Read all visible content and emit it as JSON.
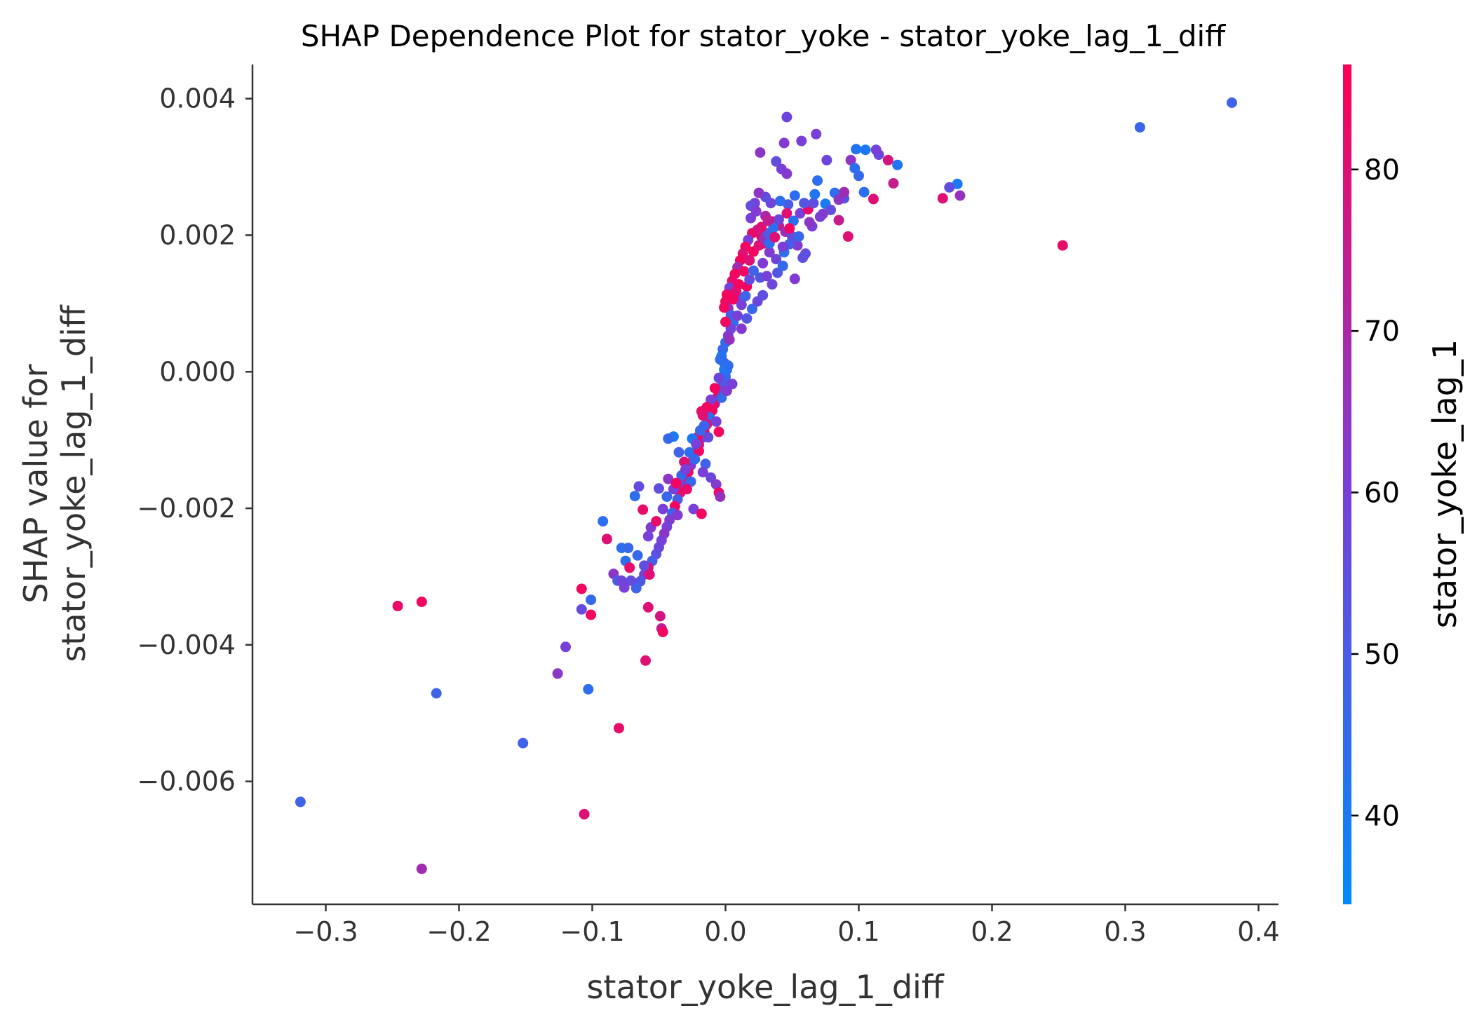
{
  "chart_data": {
    "type": "scatter",
    "title": "SHAP Dependence Plot for stator_yoke - stator_yoke_lag_1_diff",
    "xlabel": "stator_yoke_lag_1_diff",
    "ylabel_lines": [
      "SHAP value for",
      "stator_yoke_lag_1_diff"
    ],
    "xlim": [
      -0.355,
      0.415
    ],
    "ylim": [
      -0.0078,
      0.0045
    ],
    "x_ticks": [
      -0.3,
      -0.2,
      -0.1,
      0.0,
      0.1,
      0.2,
      0.3,
      0.4
    ],
    "x_tick_labels": [
      "−0.3",
      "−0.2",
      "−0.1",
      "0.0",
      "0.1",
      "0.2",
      "0.3",
      "0.4"
    ],
    "y_ticks": [
      0.004,
      0.002,
      0.0,
      -0.002,
      -0.004,
      -0.006
    ],
    "y_tick_labels": [
      "0.004",
      "0.002",
      "0.000",
      "−0.002",
      "−0.004",
      "−0.006"
    ],
    "colorbar": {
      "label": "stator_yoke_lag_1",
      "range": [
        34.5,
        86.5
      ],
      "ticks": [
        40,
        50,
        60,
        70,
        80
      ],
      "tick_labels": [
        "40",
        "50",
        "60",
        "70",
        "80"
      ],
      "colors": [
        "#008afb",
        "#ff0052"
      ]
    },
    "points": [
      [
        0.38,
        0.00394,
        48
      ],
      [
        0.311,
        0.00358,
        47
      ],
      [
        0.253,
        0.00185,
        82
      ],
      [
        0.176,
        0.00258,
        66
      ],
      [
        0.174,
        0.00275,
        40
      ],
      [
        0.168,
        0.0027,
        55
      ],
      [
        0.163,
        0.00254,
        80
      ],
      [
        0.122,
        0.0031,
        78
      ],
      [
        0.129,
        0.00303,
        42
      ],
      [
        0.126,
        0.00276,
        75
      ],
      [
        0.115,
        0.00318,
        57
      ],
      [
        0.113,
        0.00325,
        60
      ],
      [
        0.104,
        0.00263,
        44
      ],
      [
        0.098,
        0.00326,
        42
      ],
      [
        0.094,
        0.0031,
        64
      ],
      [
        0.1,
        0.00287,
        46
      ],
      [
        0.105,
        0.00325,
        40
      ],
      [
        0.111,
        0.00253,
        80
      ],
      [
        0.097,
        0.00298,
        44
      ],
      [
        0.089,
        0.00254,
        52
      ],
      [
        0.082,
        0.00262,
        44
      ],
      [
        0.075,
        0.00246,
        40
      ],
      [
        0.076,
        0.0031,
        58
      ],
      [
        0.068,
        0.00348,
        60
      ],
      [
        0.046,
        0.00373,
        58
      ],
      [
        0.044,
        0.00335,
        62
      ],
      [
        0.026,
        0.00321,
        64
      ],
      [
        0.038,
        0.00308,
        55
      ],
      [
        0.057,
        0.00338,
        60
      ],
      [
        0.042,
        0.00297,
        60
      ],
      [
        0.069,
        0.0028,
        44
      ],
      [
        0.046,
        0.0029,
        62
      ],
      [
        0.092,
        0.00198,
        80
      ],
      [
        0.085,
        0.00222,
        75
      ],
      [
        0.065,
        0.00213,
        60
      ],
      [
        0.06,
        0.00173,
        55
      ],
      [
        0.054,
        0.00185,
        62
      ],
      [
        0.052,
        0.00258,
        44
      ],
      [
        0.047,
        0.00245,
        50
      ],
      [
        0.041,
        0.0025,
        44
      ],
      [
        0.034,
        0.00247,
        58
      ],
      [
        0.03,
        0.00256,
        55
      ],
      [
        0.025,
        0.00262,
        64
      ],
      [
        0.022,
        0.00247,
        60
      ],
      [
        0.019,
        0.00243,
        56
      ],
      [
        0.03,
        0.00228,
        70
      ],
      [
        0.035,
        0.0022,
        84
      ],
      [
        0.04,
        0.00214,
        76
      ],
      [
        0.045,
        0.00205,
        66
      ],
      [
        0.05,
        0.00198,
        56
      ],
      [
        0.048,
        0.00187,
        50
      ],
      [
        0.044,
        0.00175,
        44
      ],
      [
        0.038,
        0.00165,
        58
      ],
      [
        0.033,
        0.00175,
        62
      ],
      [
        0.029,
        0.00188,
        80
      ],
      [
        0.027,
        0.00198,
        84
      ],
      [
        0.024,
        0.00208,
        74
      ],
      [
        0.02,
        0.00203,
        82
      ],
      [
        0.017,
        0.00193,
        60
      ],
      [
        0.015,
        0.00183,
        84
      ],
      [
        0.013,
        0.00173,
        80
      ],
      [
        0.011,
        0.00163,
        84
      ],
      [
        0.009,
        0.00153,
        68
      ],
      [
        0.007,
        0.00143,
        84
      ],
      [
        0.005,
        0.00133,
        82
      ],
      [
        0.003,
        0.00123,
        60
      ],
      [
        0.001,
        0.00113,
        84
      ],
      [
        0.0,
        0.00103,
        84
      ],
      [
        0.002,
        0.00093,
        66
      ],
      [
        0.004,
        0.00083,
        50
      ],
      [
        0.006,
        0.00073,
        44
      ],
      [
        0.004,
        0.00063,
        58
      ],
      [
        0.002,
        0.00053,
        62
      ],
      [
        0.0,
        0.00043,
        44
      ],
      [
        -0.002,
        0.00033,
        46
      ],
      [
        -0.003,
        0.00023,
        42
      ],
      [
        -0.001,
        0.00013,
        50
      ],
      [
        0.001,
        3e-05,
        44
      ],
      [
        0.0,
        -7e-05,
        46
      ],
      [
        -0.002,
        -0.00017,
        50
      ],
      [
        -0.004,
        -0.00027,
        58
      ],
      [
        -0.006,
        -0.00037,
        82
      ],
      [
        -0.008,
        -0.00047,
        60
      ],
      [
        -0.01,
        -0.00057,
        84
      ],
      [
        -0.012,
        -0.00067,
        44
      ],
      [
        -0.014,
        -0.00077,
        80
      ],
      [
        -0.016,
        -0.00087,
        84
      ],
      [
        -0.018,
        -0.00097,
        56
      ],
      [
        -0.02,
        -0.00107,
        80
      ],
      [
        -0.022,
        -0.00117,
        58
      ],
      [
        -0.024,
        -0.00127,
        74
      ],
      [
        -0.026,
        -0.00137,
        62
      ],
      [
        -0.028,
        -0.00147,
        84
      ],
      [
        -0.03,
        -0.00157,
        84
      ],
      [
        -0.032,
        -0.00167,
        60
      ],
      [
        -0.034,
        -0.00177,
        82
      ],
      [
        -0.036,
        -0.00187,
        50
      ],
      [
        -0.038,
        -0.00197,
        84
      ],
      [
        -0.04,
        -0.00207,
        48
      ],
      [
        -0.042,
        -0.00217,
        62
      ],
      [
        -0.044,
        -0.00227,
        60
      ],
      [
        -0.046,
        -0.00237,
        64
      ],
      [
        -0.048,
        -0.00247,
        60
      ],
      [
        -0.05,
        -0.00257,
        58
      ],
      [
        -0.052,
        -0.00267,
        54
      ],
      [
        -0.055,
        -0.00277,
        50
      ],
      [
        -0.058,
        -0.00287,
        82
      ],
      [
        -0.061,
        -0.00297,
        60
      ],
      [
        -0.064,
        -0.00307,
        52
      ],
      [
        -0.067,
        -0.00317,
        48
      ],
      [
        -0.056,
        -0.00228,
        62
      ],
      [
        -0.062,
        -0.00202,
        82
      ],
      [
        -0.068,
        -0.00182,
        44
      ],
      [
        -0.065,
        -0.00168,
        56
      ],
      [
        -0.05,
        -0.00171,
        55
      ],
      [
        -0.043,
        -0.00157,
        64
      ],
      [
        -0.039,
        -0.00172,
        60
      ],
      [
        -0.033,
        -0.00152,
        46
      ],
      [
        -0.031,
        -0.00132,
        80
      ],
      [
        -0.027,
        -0.00118,
        44
      ],
      [
        -0.021,
        -0.00096,
        82
      ],
      [
        -0.025,
        -0.00098,
        40
      ],
      [
        -0.039,
        -0.00095,
        40
      ],
      [
        -0.043,
        -0.00098,
        46
      ],
      [
        -0.035,
        -0.00118,
        48
      ],
      [
        -0.015,
        -0.00135,
        48
      ],
      [
        -0.011,
        -0.00155,
        58
      ],
      [
        -0.007,
        -0.00165,
        62
      ],
      [
        -0.005,
        -0.00177,
        84
      ],
      [
        -0.004,
        -0.00183,
        66
      ],
      [
        -0.018,
        -0.00058,
        82
      ],
      [
        -0.009,
        -0.00048,
        84
      ],
      [
        -0.003,
        -0.00038,
        46
      ],
      [
        0.001,
        -0.00028,
        62
      ],
      [
        0.005,
        -0.00018,
        60
      ],
      [
        0.009,
        0.00082,
        60
      ],
      [
        0.012,
        0.00107,
        56
      ],
      [
        0.016,
        0.00125,
        84
      ],
      [
        0.026,
        0.00138,
        52
      ],
      [
        0.031,
        0.0014,
        60
      ],
      [
        0.035,
        0.00128,
        58
      ],
      [
        0.039,
        0.00145,
        52
      ],
      [
        0.043,
        0.00155,
        46
      ],
      [
        0.052,
        0.00136,
        62
      ],
      [
        0.058,
        0.00167,
        55
      ],
      [
        0.071,
        0.00227,
        60
      ],
      [
        0.079,
        0.00237,
        56
      ],
      [
        0.085,
        0.00252,
        64
      ],
      [
        0.089,
        0.00263,
        68
      ],
      [
        -0.092,
        -0.00219,
        44
      ],
      [
        -0.089,
        -0.00245,
        80
      ],
      [
        -0.078,
        -0.00258,
        44
      ],
      [
        -0.084,
        -0.00296,
        64
      ],
      [
        -0.081,
        -0.00306,
        50
      ],
      [
        -0.071,
        -0.00306,
        56
      ],
      [
        -0.061,
        -0.00284,
        55
      ],
      [
        -0.057,
        -0.00297,
        80
      ],
      [
        -0.058,
        -0.00345,
        80
      ],
      [
        -0.049,
        -0.00358,
        78
      ],
      [
        -0.048,
        -0.00376,
        74
      ],
      [
        -0.047,
        -0.00381,
        84
      ],
      [
        -0.06,
        -0.00423,
        80
      ],
      [
        -0.073,
        -0.00258,
        46
      ],
      [
        -0.075,
        -0.00277,
        44
      ],
      [
        -0.078,
        -0.00306,
        58
      ],
      [
        -0.076,
        -0.00316,
        60
      ],
      [
        -0.108,
        -0.00318,
        84
      ],
      [
        -0.108,
        -0.00348,
        56
      ],
      [
        -0.101,
        -0.00334,
        46
      ],
      [
        -0.101,
        -0.00356,
        84
      ],
      [
        -0.12,
        -0.00403,
        60
      ],
      [
        -0.126,
        -0.00442,
        64
      ],
      [
        -0.103,
        -0.00465,
        44
      ],
      [
        -0.08,
        -0.00522,
        82
      ],
      [
        -0.152,
        -0.00544,
        48
      ],
      [
        -0.217,
        -0.00471,
        48
      ],
      [
        -0.228,
        -0.00337,
        84
      ],
      [
        -0.246,
        -0.00343,
        82
      ],
      [
        -0.106,
        -0.00648,
        80
      ],
      [
        -0.319,
        -0.0063,
        48
      ],
      [
        -0.228,
        -0.00728,
        68
      ],
      [
        -0.001,
        3e-05,
        40
      ],
      [
        0.002,
        9e-05,
        44
      ],
      [
        -0.007,
        -0.00073,
        60
      ],
      [
        -0.016,
        -0.00079,
        48
      ],
      [
        -0.005,
        -0.00088,
        84
      ],
      [
        -0.013,
        -0.00096,
        56
      ],
      [
        -0.02,
        -0.00116,
        84
      ],
      [
        -0.023,
        -0.00128,
        46
      ],
      [
        -0.017,
        -0.00147,
        60
      ],
      [
        -0.026,
        -0.00161,
        46
      ],
      [
        -0.029,
        -0.00172,
        82
      ],
      [
        -0.036,
        -0.0021,
        62
      ],
      [
        -0.024,
        -0.00201,
        60
      ],
      [
        -0.018,
        -0.00208,
        84
      ],
      [
        0.012,
        0.00063,
        62
      ],
      [
        0.016,
        0.00078,
        52
      ],
      [
        0.02,
        0.00092,
        46
      ],
      [
        0.024,
        0.00103,
        58
      ],
      [
        0.028,
        0.00112,
        55
      ],
      [
        0.014,
        0.00147,
        84
      ],
      [
        0.018,
        0.00163,
        80
      ],
      [
        0.021,
        0.00176,
        84
      ],
      [
        0.025,
        0.00185,
        80
      ],
      [
        0.029,
        0.00195,
        66
      ],
      [
        0.032,
        0.00203,
        50
      ],
      [
        0.036,
        0.00211,
        44
      ],
      [
        0.04,
        0.00223,
        58
      ],
      [
        0.046,
        0.00232,
        80
      ],
      [
        0.051,
        0.00221,
        44
      ],
      [
        0.056,
        0.00232,
        60
      ],
      [
        0.062,
        0.00238,
        82
      ],
      [
        0.066,
        0.00247,
        55
      ],
      [
        0.073,
        0.00231,
        62
      ],
      [
        -0.001,
        0.00094,
        84
      ],
      [
        0.0,
        0.00073,
        84
      ],
      [
        0.003,
        0.00047,
        66
      ],
      [
        -0.004,
        0.00018,
        44
      ],
      [
        -0.005,
        -9e-05,
        58
      ],
      [
        -0.008,
        -0.00024,
        84
      ],
      [
        -0.011,
        -0.00041,
        60
      ],
      [
        -0.014,
        -0.00052,
        84
      ],
      [
        -0.017,
        -0.00064,
        80
      ],
      [
        -0.019,
        -0.00086,
        46
      ],
      [
        -0.022,
        -0.00106,
        60
      ],
      [
        -0.03,
        -0.00143,
        60
      ],
      [
        -0.037,
        -0.00163,
        84
      ],
      [
        -0.044,
        -0.00183,
        46
      ],
      [
        -0.047,
        -0.00201,
        60
      ],
      [
        -0.052,
        -0.00219,
        82
      ],
      [
        -0.058,
        -0.00241,
        60
      ],
      [
        -0.066,
        -0.00269,
        46
      ],
      [
        -0.072,
        -0.00287,
        82
      ],
      [
        0.008,
        0.00118,
        80
      ],
      [
        0.01,
        0.00128,
        84
      ],
      [
        0.006,
        0.00106,
        84
      ],
      [
        0.018,
        0.00135,
        56
      ],
      [
        0.021,
        0.00148,
        48
      ],
      [
        0.028,
        0.00159,
        62
      ],
      [
        0.033,
        0.00188,
        44
      ],
      [
        0.037,
        0.00197,
        80
      ],
      [
        0.043,
        0.00183,
        60
      ],
      [
        0.048,
        0.0021,
        84
      ],
      [
        0.055,
        0.00198,
        46
      ],
      [
        0.059,
        0.00247,
        52
      ],
      [
        0.063,
        0.00219,
        64
      ],
      [
        0.067,
        0.0026,
        42
      ],
      [
        0.019,
        0.00225,
        60
      ],
      [
        0.023,
        0.00235,
        62
      ],
      [
        0.027,
        0.00212,
        80
      ],
      [
        0.032,
        0.00221,
        74
      ],
      [
        0.012,
        0.00098,
        60
      ],
      [
        0.015,
        0.00111,
        48
      ]
    ]
  }
}
